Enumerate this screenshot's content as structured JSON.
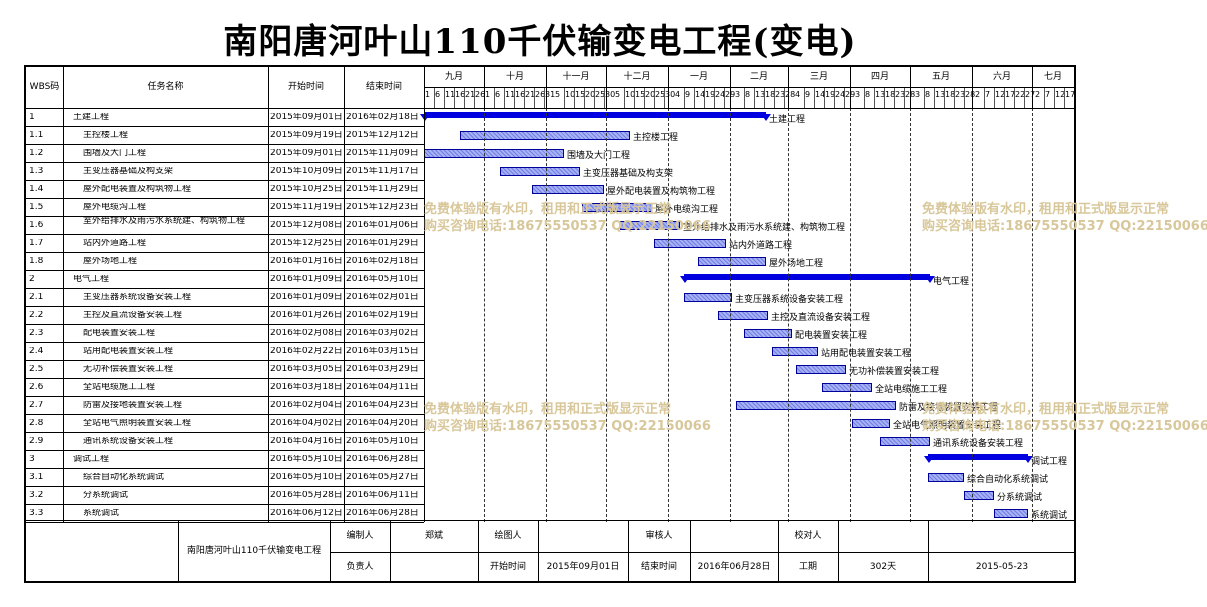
{
  "title": "南阳唐河叶山110千伏输变电工程(变电)",
  "columns": {
    "wbs": "WBS码",
    "name": "任务名称",
    "start": "开始时间",
    "end": "结束时间"
  },
  "months": [
    "九月",
    "十月",
    "十一月",
    "十二月",
    "一月",
    "二月",
    "三月",
    "四月",
    "五月",
    "六月",
    "七月"
  ],
  "day_ticks": [
    [
      "1",
      "6",
      "11",
      "16",
      "21",
      "26"
    ],
    [
      "1",
      "6",
      "11",
      "16",
      "21",
      "26",
      "31"
    ],
    [
      "5",
      "10",
      "15",
      "20",
      "25",
      "30"
    ],
    [
      "5",
      "10",
      "15",
      "20",
      "25",
      "30"
    ],
    [
      "4",
      "9",
      "14",
      "19",
      "24",
      "29"
    ],
    [
      "3",
      "8",
      "13",
      "18",
      "23",
      "28"
    ],
    [
      "4",
      "9",
      "14",
      "19",
      "24",
      "29"
    ],
    [
      "3",
      "8",
      "13",
      "18",
      "23",
      "28"
    ],
    [
      "3",
      "8",
      "13",
      "18",
      "23",
      "28"
    ],
    [
      "2",
      "7",
      "12",
      "17",
      "22",
      "27"
    ],
    [
      "2",
      "7",
      "12",
      "17"
    ]
  ],
  "tasks": [
    {
      "wbs": "1",
      "name": "土建工程",
      "start": "2015年09月01日",
      "end": "2016年02月18日",
      "summary": true,
      "indent": 0
    },
    {
      "wbs": "1.1",
      "name": "主控楼工程",
      "start": "2015年09月19日",
      "end": "2015年12月12日",
      "summary": false,
      "indent": 1
    },
    {
      "wbs": "1.2",
      "name": "围墙及大门工程",
      "start": "2015年09月01日",
      "end": "2015年11月09日",
      "summary": false,
      "indent": 1
    },
    {
      "wbs": "1.3",
      "name": "主变压器基础及构支架",
      "start": "2015年10月09日",
      "end": "2015年11月17日",
      "summary": false,
      "indent": 1
    },
    {
      "wbs": "1.4",
      "name": "屋外配电装置及构筑物工程",
      "start": "2015年10月25日",
      "end": "2015年11月29日",
      "summary": false,
      "indent": 1
    },
    {
      "wbs": "1.5",
      "name": "屋外电缆沟工程",
      "start": "2015年11月19日",
      "end": "2015年12月23日",
      "summary": false,
      "indent": 1
    },
    {
      "wbs": "1.6",
      "name": "室外给排水及雨污水系统建、构筑物工程",
      "start": "2015年12月08日",
      "end": "2016年01月06日",
      "summary": false,
      "indent": 1
    },
    {
      "wbs": "1.7",
      "name": "站内外道路工程",
      "start": "2015年12月25日",
      "end": "2016年01月29日",
      "summary": false,
      "indent": 1
    },
    {
      "wbs": "1.8",
      "name": "屋外场地工程",
      "start": "2016年01月16日",
      "end": "2016年02月18日",
      "summary": false,
      "indent": 1
    },
    {
      "wbs": "2",
      "name": "电气工程",
      "start": "2016年01月09日",
      "end": "2016年05月10日",
      "summary": true,
      "indent": 0
    },
    {
      "wbs": "2.1",
      "name": "主变压器系统设备安装工程",
      "start": "2016年01月09日",
      "end": "2016年02月01日",
      "summary": false,
      "indent": 1
    },
    {
      "wbs": "2.2",
      "name": "主控及直流设备安装工程",
      "start": "2016年01月26日",
      "end": "2016年02月19日",
      "summary": false,
      "indent": 1
    },
    {
      "wbs": "2.3",
      "name": "配电装置安装工程",
      "start": "2016年02月08日",
      "end": "2016年03月02日",
      "summary": false,
      "indent": 1
    },
    {
      "wbs": "2.4",
      "name": "站用配电装置安装工程",
      "start": "2016年02月22日",
      "end": "2016年03月15日",
      "summary": false,
      "indent": 1
    },
    {
      "wbs": "2.5",
      "name": "无功补偿装置安装工程",
      "start": "2016年03月05日",
      "end": "2016年03月29日",
      "summary": false,
      "indent": 1
    },
    {
      "wbs": "2.6",
      "name": "全站电缆施工工程",
      "start": "2016年03月18日",
      "end": "2016年04月11日",
      "summary": false,
      "indent": 1
    },
    {
      "wbs": "2.7",
      "name": "防雷及接地装置安装工程",
      "start": "2016年02月04日",
      "end": "2016年04月23日",
      "summary": false,
      "indent": 1
    },
    {
      "wbs": "2.8",
      "name": "全站电气照明装置安装工程",
      "start": "2016年04月02日",
      "end": "2016年04月20日",
      "summary": false,
      "indent": 1
    },
    {
      "wbs": "2.9",
      "name": "通讯系统设备安装工程",
      "start": "2016年04月16日",
      "end": "2016年05月10日",
      "summary": false,
      "indent": 1
    },
    {
      "wbs": "3",
      "name": "调试工程",
      "start": "2016年05月10日",
      "end": "2016年06月28日",
      "summary": true,
      "indent": 0
    },
    {
      "wbs": "3.1",
      "name": "综合自动化系统调试",
      "start": "2016年05月10日",
      "end": "2016年05月27日",
      "summary": false,
      "indent": 1
    },
    {
      "wbs": "3.2",
      "name": "分系统调试",
      "start": "2016年05月28日",
      "end": "2016年06月11日",
      "summary": false,
      "indent": 1
    },
    {
      "wbs": "3.3",
      "name": "系统调试",
      "start": "2016年06月12日",
      "end": "2016年06月28日",
      "summary": false,
      "indent": 1
    }
  ],
  "footer": {
    "project": "南阳唐河叶山110千伏输变电工程",
    "editor_label": "编制人",
    "editor": "郑斌",
    "drawer_label": "绘图人",
    "drawer": "",
    "reviewer_label": "审核人",
    "reviewer": "",
    "checker_label": "校对人",
    "checker": "",
    "owner_label": "负责人",
    "owner": "",
    "start_label": "开始时间",
    "start": "2015年09月01日",
    "end_label": "结束时间",
    "end": "2016年06月28日",
    "duration_label": "工期",
    "duration": "302天",
    "date": "2015-05-23"
  },
  "watermark": {
    "line1": "免费体验版有水印，租用和正式版显示正常",
    "line2": "购买咨询电话:18675550537 QQ:22150066",
    "color": "#d8c79a"
  },
  "colors": {
    "bar_border": "#00009a",
    "bar_fill": "#8e9bef",
    "summary": "#0000e0"
  }
}
